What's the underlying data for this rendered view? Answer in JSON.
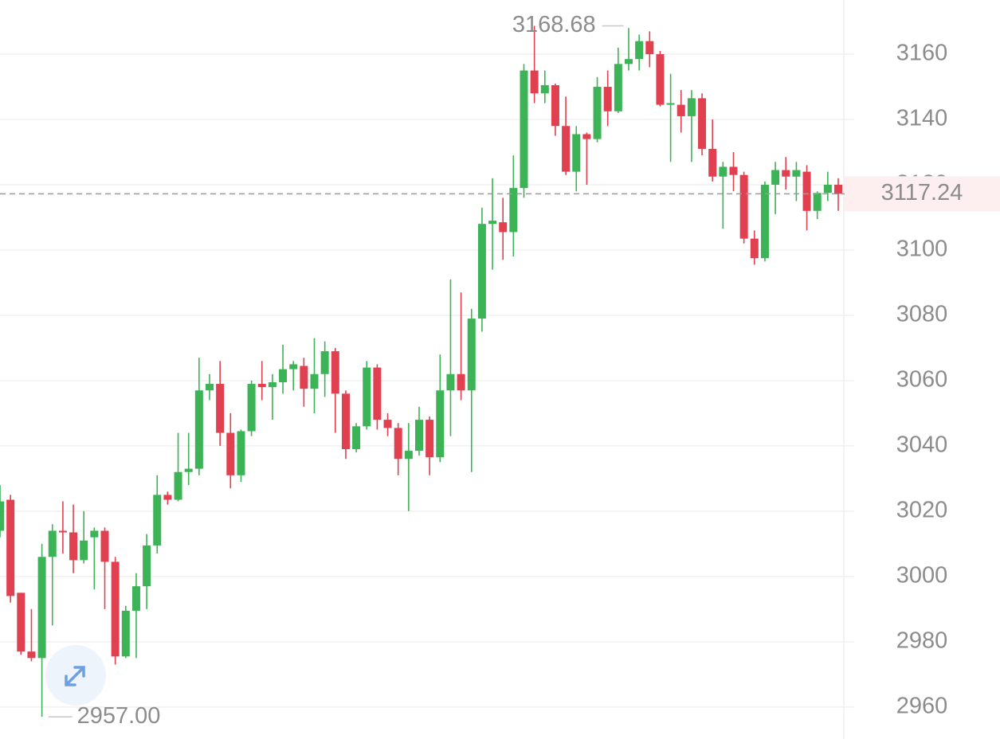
{
  "chart_data": {
    "type": "candlestick",
    "up_color": "#3cb356",
    "down_color": "#e0404f",
    "ylim": [
      2950.2,
      3176.6
    ],
    "yticks": [
      2960,
      2980,
      3000,
      3020,
      3040,
      3060,
      3080,
      3100,
      3120,
      3140,
      3160
    ],
    "grid": true,
    "high_label": "3168.68",
    "low_label": "2957.00",
    "last_label": "3117.24",
    "candles": [
      [
        3014,
        3028,
        3012,
        3023
      ],
      [
        3023.5,
        3025,
        2992,
        2994
      ],
      [
        2995,
        2995,
        2976,
        2977
      ],
      [
        2977,
        2990,
        2974,
        2975
      ],
      [
        2975,
        3010,
        2957,
        3006
      ],
      [
        3006,
        3016,
        2985,
        3014
      ],
      [
        3014,
        3023,
        3007,
        3013.5
      ],
      [
        3013.5,
        3022,
        3001,
        3005
      ],
      [
        3005,
        3020,
        3004,
        3011
      ],
      [
        3012,
        3015,
        2996,
        3014
      ],
      [
        3014,
        3015,
        2990,
        3004.5
      ],
      [
        3004.5,
        3006,
        2973,
        2975.5
      ],
      [
        2975.5,
        2991,
        2975,
        2989.5
      ],
      [
        2989.5,
        3001,
        2975,
        2997
      ],
      [
        2997,
        3013,
        2990,
        3009.5
      ],
      [
        3009.5,
        3031,
        3007,
        3025
      ],
      [
        3025,
        3026,
        3022,
        3023.5
      ],
      [
        3023.5,
        3044,
        3023,
        3032
      ],
      [
        3032,
        3044,
        3028,
        3033
      ],
      [
        3033,
        3067,
        3031,
        3057
      ],
      [
        3057,
        3062,
        3054,
        3059
      ],
      [
        3059,
        3066,
        3040,
        3044
      ],
      [
        3044,
        3050,
        3027,
        3031
      ],
      [
        3031,
        3045,
        3029,
        3044.5
      ],
      [
        3044.5,
        3060,
        3043,
        3059
      ],
      [
        3059,
        3066,
        3054,
        3058
      ],
      [
        3058,
        3062,
        3048,
        3059.5
      ],
      [
        3059.5,
        3071,
        3056,
        3063.5
      ],
      [
        3063.5,
        3066,
        3057,
        3065
      ],
      [
        3064.5,
        3067,
        3052,
        3057.5
      ],
      [
        3057.5,
        3073,
        3050,
        3062
      ],
      [
        3062,
        3072,
        3055,
        3069
      ],
      [
        3069,
        3070,
        3044,
        3056
      ],
      [
        3056,
        3057,
        3036,
        3039
      ],
      [
        3039,
        3047,
        3038,
        3046
      ],
      [
        3046,
        3066,
        3045,
        3064
      ],
      [
        3064,
        3065,
        3045,
        3048
      ],
      [
        3048,
        3050,
        3043,
        3045.5
      ],
      [
        3045.5,
        3047,
        3031,
        3036
      ],
      [
        3036,
        3047,
        3020,
        3038.5
      ],
      [
        3038.5,
        3052,
        3037,
        3048
      ],
      [
        3048,
        3049,
        3031,
        3036.5
      ],
      [
        3036.5,
        3068,
        3035,
        3057
      ],
      [
        3057,
        3091,
        3043,
        3062
      ],
      [
        3062,
        3087,
        3054,
        3057
      ],
      [
        3057,
        3082,
        3032,
        3079
      ],
      [
        3079,
        3113,
        3075,
        3108
      ],
      [
        3108,
        3122,
        3094,
        3109
      ],
      [
        3108.5,
        3116,
        3097,
        3105.5
      ],
      [
        3105.5,
        3129,
        3098,
        3119
      ],
      [
        3119,
        3157,
        3116,
        3155
      ],
      [
        3155,
        3168.68,
        3145,
        3148
      ],
      [
        3148,
        3155,
        3145,
        3150.5
      ],
      [
        3150.5,
        3151,
        3135,
        3138
      ],
      [
        3138,
        3147,
        3123,
        3124
      ],
      [
        3124,
        3138,
        3118,
        3135.5
      ],
      [
        3135.5,
        3136,
        3120,
        3134
      ],
      [
        3134,
        3153,
        3133,
        3150
      ],
      [
        3150,
        3155,
        3138,
        3142.5
      ],
      [
        3142.5,
        3162,
        3142,
        3157
      ],
      [
        3157,
        3168,
        3155,
        3158.5
      ],
      [
        3158.5,
        3166,
        3155,
        3164
      ],
      [
        3164,
        3167,
        3156,
        3160
      ],
      [
        3160,
        3161,
        3144,
        3144.5
      ],
      [
        3144.5,
        3154,
        3127,
        3145
      ],
      [
        3144.5,
        3149,
        3136,
        3141
      ],
      [
        3141,
        3149,
        3127,
        3146.5
      ],
      [
        3146.5,
        3148,
        3129,
        3131
      ],
      [
        3131,
        3140,
        3121,
        3122.5
      ],
      [
        3122.5,
        3127,
        3106.5,
        3125.5
      ],
      [
        3125.5,
        3130,
        3118,
        3123
      ],
      [
        3123,
        3124,
        3102,
        3103.5
      ],
      [
        3103.5,
        3106,
        3095.5,
        3097.5
      ],
      [
        3097.5,
        3121,
        3096.5,
        3120
      ],
      [
        3120,
        3127,
        3111,
        3124.5
      ],
      [
        3124.5,
        3128.5,
        3118.5,
        3122.5
      ],
      [
        3122.5,
        3127,
        3115,
        3124.5
      ],
      [
        3124,
        3126,
        3106,
        3112
      ],
      [
        3112,
        3118,
        3109.5,
        3117.5
      ],
      [
        3117.5,
        3124,
        3115,
        3120
      ],
      [
        3120,
        3122,
        3112,
        3117.24
      ]
    ]
  }
}
